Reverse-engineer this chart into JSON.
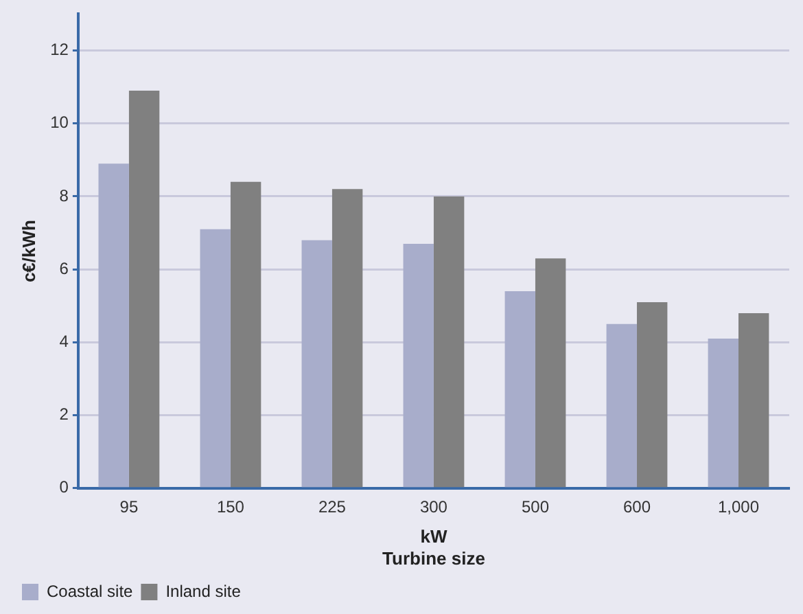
{
  "chart_data": {
    "type": "bar",
    "xlabel": "kW\nTurbine size",
    "ylabel": "c€/kWh",
    "categories": [
      "95",
      "150",
      "225",
      "300",
      "500",
      "600",
      "1,000"
    ],
    "series": [
      {
        "name": "Coastal site",
        "color": "#a8adcb",
        "values": [
          8.9,
          7.1,
          6.8,
          6.7,
          5.4,
          4.5,
          4.1
        ]
      },
      {
        "name": "Inland site",
        "color": "#808080",
        "values": [
          10.9,
          8.4,
          8.2,
          8.0,
          6.3,
          5.1,
          4.8
        ]
      }
    ],
    "ylim": [
      0,
      13
    ],
    "yticks": [
      0,
      2,
      4,
      6,
      8,
      10,
      12
    ],
    "grid": "y",
    "legend": "bottom left"
  }
}
